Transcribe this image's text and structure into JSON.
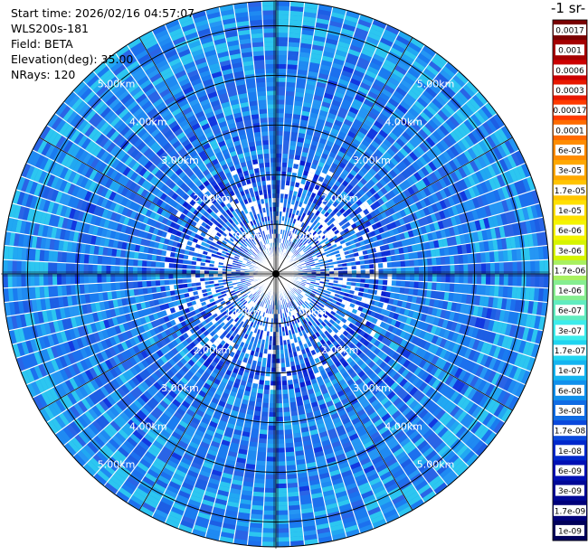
{
  "header": {
    "start_time": "Start time: 2026/02/16 04:57:07",
    "instrument": "WLS200s-181",
    "field": "Field: BETA",
    "elevation": "Elevation(deg): 35.00",
    "nrays": "NRays: 120"
  },
  "colorbar": {
    "unit_label": "-1 sr-",
    "labels": [
      "0.0017",
      "0.001",
      "0.0006",
      "0.0003",
      "0.00017",
      "0.0001",
      "6e-05",
      "3e-05",
      "1.7e-05",
      "1e-05",
      "6e-06",
      "3e-06",
      "1.7e-06",
      "1e-06",
      "6e-07",
      "3e-07",
      "1.7e-07",
      "1e-07",
      "6e-08",
      "3e-08",
      "1.7e-08",
      "1e-08",
      "6e-09",
      "3e-09",
      "1.7e-09",
      "1e-09"
    ],
    "colors": [
      "#7a0000",
      "#a50000",
      "#cc0000",
      "#e81800",
      "#ff3a00",
      "#ff6a00",
      "#ff8c00",
      "#ffa800",
      "#ffc400",
      "#ffe000",
      "#f4f400",
      "#d6f400",
      "#a8f060",
      "#86ee90",
      "#60ecc0",
      "#3cecec",
      "#20d4f0",
      "#14b4f0",
      "#1090ec",
      "#106ce4",
      "#0a48dc",
      "#0028cc",
      "#0010b4",
      "#000896",
      "#00007a",
      "#00005a"
    ]
  },
  "chart_data": {
    "type": "heatmap",
    "projection": "polar PPI",
    "field": "BETA",
    "elevation_deg": 35.0,
    "nrays": 120,
    "max_range_km": 5.5,
    "range_rings_km": [
      1,
      2,
      3,
      4,
      5
    ],
    "range_labels": [
      "1.00km",
      "2.00km",
      "3.00km",
      "4.00km",
      "5.00km"
    ],
    "color_scale": "log",
    "value_range": [
      1e-09,
      0.0017
    ],
    "dominant_value_range": [
      3e-08,
      1e-07
    ],
    "near_range_values": [
      6e-09,
      3e-08
    ],
    "grid": true
  }
}
